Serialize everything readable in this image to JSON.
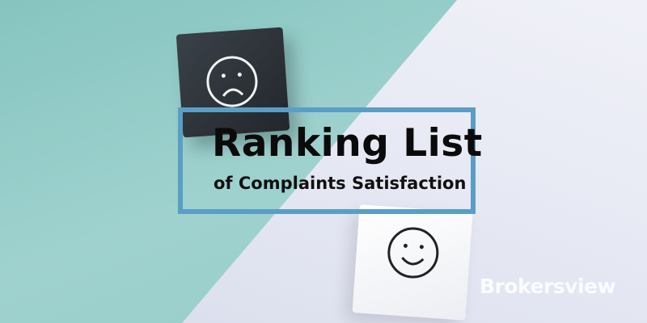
{
  "banner": {
    "title": "Ranking List",
    "subtitle": "of Complaints Satisfaction",
    "logo_text": "Brokersview"
  },
  "icons": [
    "sad-face-icon",
    "smiley-face-icon"
  ],
  "colors": {
    "teal_background": "#93cdc9",
    "light_background": "#e4e6f2",
    "frame_border": "#5a9ec6",
    "text": "#0b0b0b"
  }
}
